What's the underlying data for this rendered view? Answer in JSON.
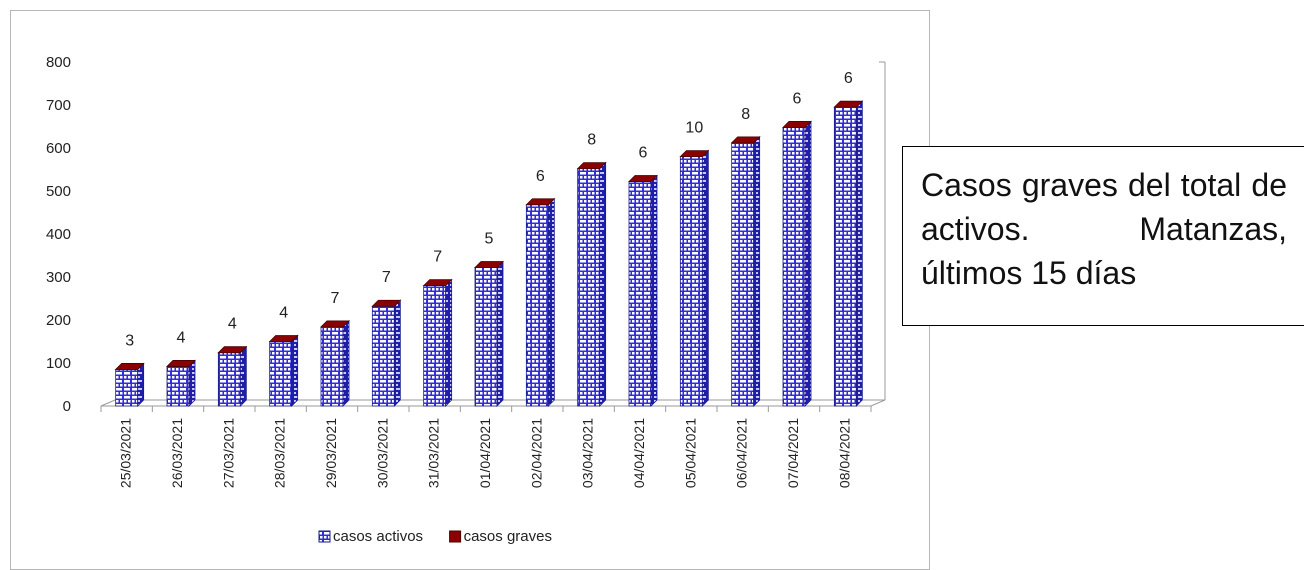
{
  "chart_data": {
    "type": "bar",
    "categories": [
      "25/03/2021",
      "26/03/2021",
      "27/03/2021",
      "28/03/2021",
      "29/03/2021",
      "30/03/2021",
      "31/03/2021",
      "01/04/2021",
      "02/04/2021",
      "03/04/2021",
      "04/04/2021",
      "05/04/2021",
      "06/04/2021",
      "07/04/2021",
      "08/04/2021"
    ],
    "series": [
      {
        "name": "casos activos",
        "values": [
          85,
          92,
          124,
          150,
          184,
          232,
          280,
          322,
          468,
          552,
          522,
          580,
          612,
          648,
          695
        ]
      },
      {
        "name": "casos graves",
        "values": [
          3,
          4,
          4,
          4,
          7,
          7,
          7,
          5,
          6,
          8,
          6,
          10,
          8,
          6,
          6
        ]
      }
    ],
    "data_labels": [
      "3",
      "4",
      "4",
      "4",
      "7",
      "7",
      "7",
      "5",
      "6",
      "8",
      "6",
      "10",
      "8",
      "6",
      "6"
    ],
    "ylim": [
      0,
      800
    ],
    "yticks": [
      "0",
      "100",
      "200",
      "300",
      "400",
      "500",
      "600",
      "700",
      "800"
    ],
    "legend_position": "bottom",
    "grid": false,
    "colors": {
      "activos": "#2f2fd6",
      "activos_pattern": "#ffffff",
      "graves": "#8b0000"
    }
  },
  "caption": {
    "text": "Casos graves del total de activos. Matanzas, últimos 15 días"
  }
}
